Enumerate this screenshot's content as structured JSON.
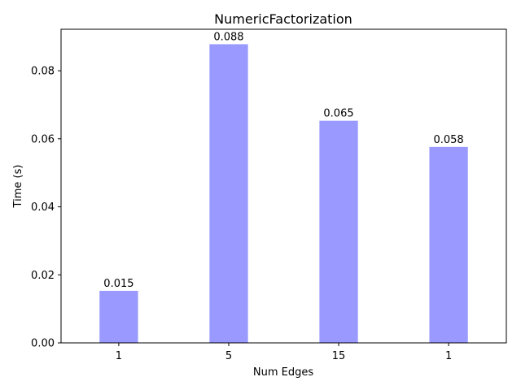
{
  "chart_data": {
    "type": "bar",
    "title": "NumericFactorization",
    "xlabel": "Num Edges",
    "ylabel": "Time (s)",
    "categories": [
      "1",
      "5",
      "15",
      "1"
    ],
    "values": [
      0.0153,
      0.0878,
      0.0653,
      0.0576
    ],
    "data_labels": [
      "0.015",
      "0.088",
      "0.065",
      "0.058"
    ],
    "ylim": [
      0,
      0.0922
    ],
    "yticks": [
      0.0,
      0.02,
      0.04,
      0.06,
      0.08
    ],
    "ytick_labels": [
      "0.00",
      "0.02",
      "0.04",
      "0.06",
      "0.08"
    ],
    "bar_color": "#9999ff",
    "grid": false,
    "legend": "none"
  }
}
